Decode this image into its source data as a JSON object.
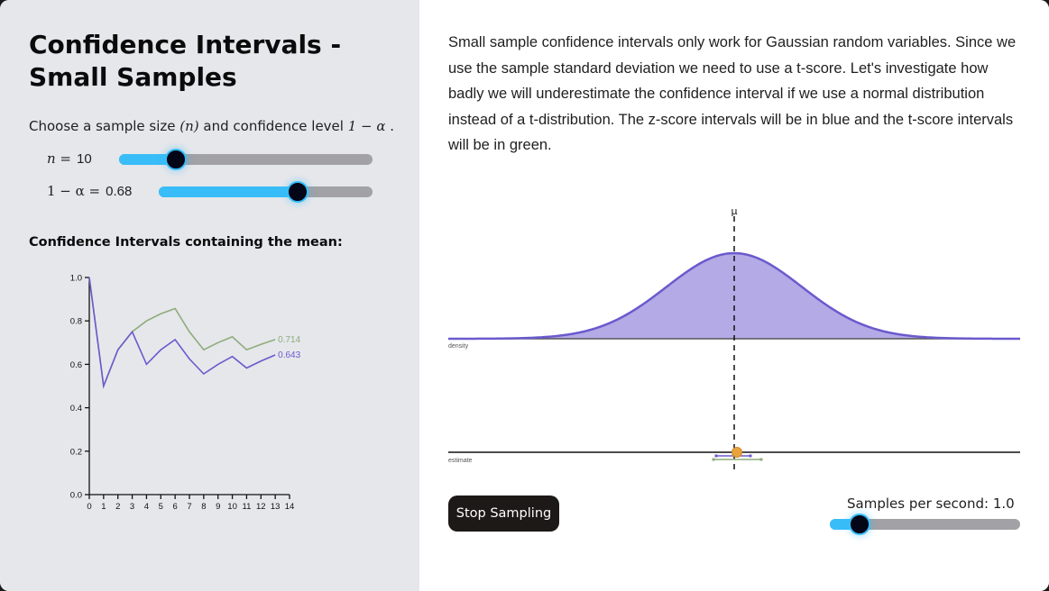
{
  "left_panel": {
    "title": "Confidence Intervals - Small Samples",
    "prompt_prefix": "Choose a sample size ",
    "prompt_n": "(n)",
    "prompt_mid": " and confidence level ",
    "prompt_alpha": "1 − α",
    "prompt_suffix": " .",
    "sliders": [
      {
        "name": "n",
        "label_math": "n =",
        "value": "10",
        "fill_pct": 22
      },
      {
        "name": "confidence",
        "label_math": "1 − α =",
        "value": "0.68",
        "fill_pct": 65
      }
    ],
    "chart_heading": "Confidence Intervals containing the mean:"
  },
  "right_panel": {
    "description": "Small sample confidence intervals only work for Gaussian random variables. Since we use the sample standard deviation we need to use a t-score. Let's investigate how badly we will underestimate the confidence interval if we use a normal distribution instead of a t-distribution. The z-score intervals will be in blue and the t-score intervals will be in green.",
    "mu_label": "μ",
    "density_label": "density",
    "estimate_label": "estimate",
    "stop_button": "Stop Sampling",
    "samples_per_second_label": "Samples per second: 1.0",
    "samples_per_second_fill_pct": 15
  },
  "colors": {
    "slider_fill": "#38bdf8",
    "slider_track": "#a1a1a6",
    "z_series": "#6a5acd",
    "t_series": "#8fac7c",
    "density_fill": "#b3aae6",
    "density_stroke": "#6a5acd",
    "estimate_point": "#e8a33d"
  },
  "chart_data": {
    "type": "line",
    "title": "Confidence Intervals containing the mean:",
    "xlabel": "",
    "ylabel": "",
    "x": [
      0,
      1,
      2,
      3,
      4,
      5,
      6,
      7,
      8,
      9,
      10,
      11,
      12,
      13
    ],
    "xticks": [
      "0",
      "1",
      "2",
      "3",
      "4",
      "5",
      "6",
      "7",
      "8",
      "9",
      "10",
      "11",
      "12",
      "13",
      "14"
    ],
    "yticks": [
      "0.0",
      "0.2",
      "0.4",
      "0.6",
      "0.8",
      "1.0"
    ],
    "xlim": [
      0,
      14
    ],
    "ylim": [
      0,
      1
    ],
    "series": [
      {
        "name": "t-score",
        "color": "#8fac7c",
        "end_label": "0.714",
        "values": [
          1.0,
          0.5,
          0.667,
          0.75,
          0.8,
          0.833,
          0.857,
          0.75,
          0.667,
          0.7,
          0.727,
          0.667,
          0.692,
          0.714
        ]
      },
      {
        "name": "z-score",
        "color": "#6a5acd",
        "end_label": "0.643",
        "values": [
          1.0,
          0.5,
          0.667,
          0.75,
          0.6,
          0.667,
          0.714,
          0.625,
          0.556,
          0.6,
          0.636,
          0.583,
          0.615,
          0.643
        ]
      }
    ],
    "grid": false,
    "legend": "none (end labels)"
  }
}
